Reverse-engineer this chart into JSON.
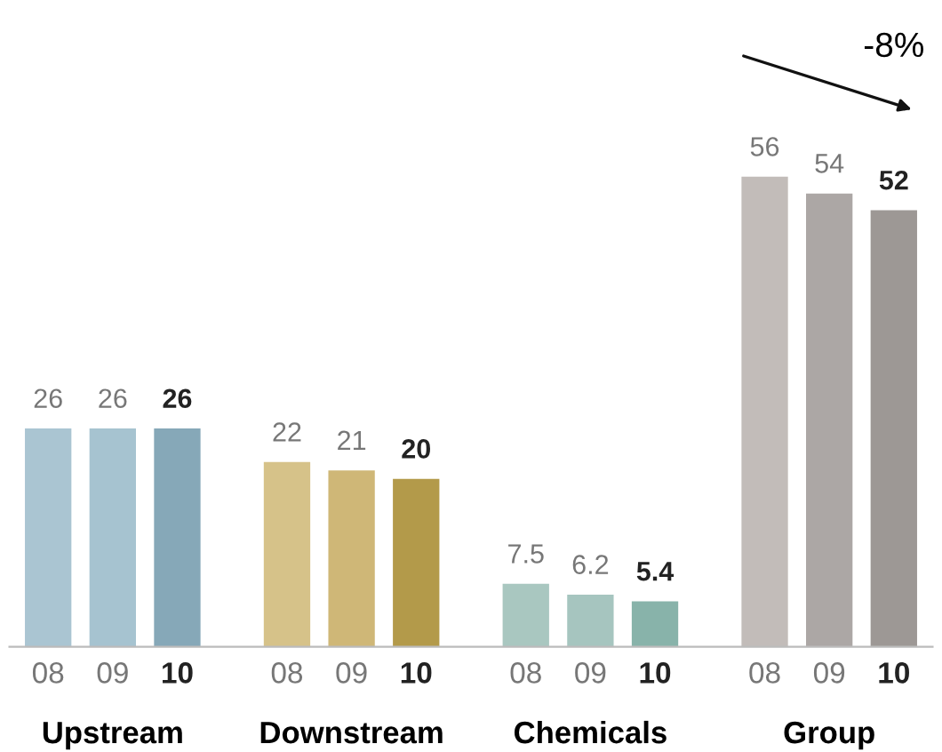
{
  "chart_data": {
    "type": "bar",
    "categories": [
      "08",
      "09",
      "10",
      "08",
      "09",
      "10",
      "08",
      "09",
      "10",
      "08",
      "09",
      "10"
    ],
    "values": [
      26,
      26,
      26,
      22,
      21,
      20,
      7.5,
      6.2,
      5.4,
      56,
      54,
      52
    ],
    "colors": [
      "#aac5d2",
      "#a6c3d0",
      "#86a8b8",
      "#d6c289",
      "#cfb777",
      "#b39a4a",
      "#a9c7c0",
      "#a6c5bf",
      "#88b3aa",
      "#c2bcb9",
      "#aca7a5",
      "#9d9895"
    ],
    "data_labels": true,
    "annotations": [
      "Upstream",
      "Downstream",
      "Chemicals",
      "Group",
      "-8%"
    ]
  }
}
